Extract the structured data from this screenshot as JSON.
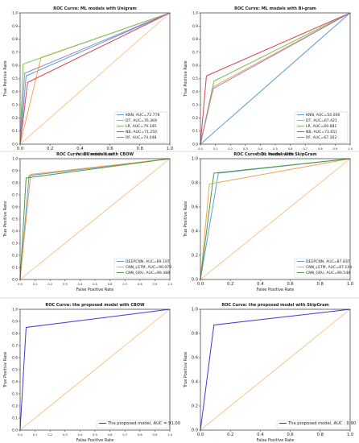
{
  "chart_data": [
    {
      "type": "line",
      "title": "ROC Curve: ML models with Unigram",
      "xlabel": "False Positive Rate",
      "ylabel": "True Positive Rate",
      "xlim": [
        0,
        1
      ],
      "ylim": [
        0,
        1
      ],
      "xticks": [
        "0.0",
        "0.2",
        "0.4",
        "0.6",
        "0.8",
        "1.0"
      ],
      "yticks": [
        "0.0",
        "0.1",
        "0.2",
        "0.3",
        "0.4",
        "0.5",
        "0.6",
        "0.7",
        "0.8",
        "0.9",
        "1.0"
      ],
      "legend_position": "lower-right",
      "diagonal_color": "#fdb56b",
      "series": [
        {
          "name": "KNN, AUC=72.778",
          "color": "#5aa0d6",
          "x": [
            0,
            0.04,
            1
          ],
          "y": [
            0,
            0.52,
            1
          ]
        },
        {
          "name": "DT, AUC=76.369",
          "color": "#f4a24c",
          "x": [
            0,
            0.14,
            1
          ],
          "y": [
            0,
            0.66,
            1
          ]
        },
        {
          "name": "LR, AUC=79.345",
          "color": "#7cbf55",
          "x": [
            0,
            0.02,
            1
          ],
          "y": [
            0,
            0.61,
            1
          ]
        },
        {
          "name": "NB, AUC=71.250",
          "color": "#d9454f",
          "x": [
            0,
            0.05,
            1
          ],
          "y": [
            0,
            0.47,
            1
          ]
        },
        {
          "name": "RF, AUC=74.048",
          "color": "#9a86c8",
          "x": [
            0,
            0.03,
            1
          ],
          "y": [
            0,
            0.54,
            1
          ]
        }
      ]
    },
    {
      "type": "line",
      "title": "ROC Curve: ML models with Bi-gram",
      "xlabel": "False Positive Rate",
      "ylabel": "True Positive Rate",
      "xlim": [
        0,
        1
      ],
      "ylim": [
        0,
        1
      ],
      "xticks": [
        "0.0",
        "0.1",
        "0.2",
        "0.3",
        "0.4",
        "0.5",
        "0.6",
        "0.7",
        "0.8",
        "0.9",
        "1.0"
      ],
      "yticks": [
        "0.0",
        "0.1",
        "0.2",
        "0.3",
        "0.4",
        "0.5",
        "0.6",
        "0.7",
        "0.8",
        "0.9",
        "1.0"
      ],
      "legend_position": "lower-right",
      "diagonal_color": "#fdb56b",
      "series": [
        {
          "name": "KNN, AUC=50.000",
          "color": "#5aa0d6",
          "x": [
            0,
            1
          ],
          "y": [
            0,
            1
          ]
        },
        {
          "name": "DT, AUC=67.421",
          "color": "#f4a24c",
          "x": [
            0,
            0.09,
            1
          ],
          "y": [
            0,
            0.44,
            1
          ]
        },
        {
          "name": "LR, AUC=69.881",
          "color": "#7cbf55",
          "x": [
            0,
            0.09,
            1
          ],
          "y": [
            0,
            0.48,
            1
          ]
        },
        {
          "name": "NB, AUC=73.651",
          "color": "#d9454f",
          "x": [
            0,
            0.04,
            1
          ],
          "y": [
            0,
            0.52,
            1
          ]
        },
        {
          "name": "RF, AUC=67.302",
          "color": "#9a86c8",
          "x": [
            0,
            0.08,
            1
          ],
          "y": [
            0,
            0.42,
            1
          ]
        }
      ]
    },
    {
      "type": "line",
      "title": "ROC Curve: DL models with CBOW",
      "xlabel": "False Positive Rate",
      "ylabel": "True Positive Rate",
      "xlim": [
        0,
        1
      ],
      "ylim": [
        0,
        1
      ],
      "xticks": [
        "0.0",
        "0.1",
        "0.2",
        "0.3",
        "0.4",
        "0.5",
        "0.6",
        "0.7",
        "0.8",
        "0.9",
        "1.0"
      ],
      "yticks": [
        "0.0",
        "0.1",
        "0.2",
        "0.3",
        "0.4",
        "0.5",
        "0.6",
        "0.7",
        "0.8",
        "0.9",
        "1.0"
      ],
      "legend_position": "lower-right",
      "diagonal_color": "#fdb56b",
      "series": [
        {
          "name": "DEEPCNN, AUC=89.107",
          "color": "#5aa0d6",
          "x": [
            0,
            0.06,
            1
          ],
          "y": [
            0,
            0.86,
            1
          ]
        },
        {
          "name": "CNN_LSTM, AUC=90.079",
          "color": "#f4a24c",
          "x": [
            0,
            0.07,
            1
          ],
          "y": [
            0,
            0.87,
            1
          ]
        },
        {
          "name": "CNN_GRU, AUC=89.484",
          "color": "#4e9a3f",
          "x": [
            0,
            0.04,
            1
          ],
          "y": [
            0,
            0.84,
            1
          ]
        }
      ]
    },
    {
      "type": "line",
      "title": "ROC Curve: DL model with SkipGram",
      "xlabel": "False Positive Rate",
      "ylabel": "True Positive Rate",
      "xlim": [
        0,
        1
      ],
      "ylim": [
        0,
        1
      ],
      "xticks": [
        "0.0",
        "0.2",
        "0.4",
        "0.6",
        "0.8",
        "1.0"
      ],
      "yticks": [
        "0.0",
        "0.2",
        "0.4",
        "0.6",
        "0.8",
        "1.0"
      ],
      "legend_position": "lower-right",
      "diagonal_color": "#fdb56b",
      "series": [
        {
          "name": "DEEPCNN, AUC=87.837",
          "color": "#5aa0d6",
          "x": [
            0,
            0.12,
            1
          ],
          "y": [
            0,
            0.88,
            1
          ]
        },
        {
          "name": "CNN_LSTM, AUC=87.143",
          "color": "#f4a24c",
          "x": [
            0,
            0.06,
            1
          ],
          "y": [
            0,
            0.79,
            1
          ]
        },
        {
          "name": "CNN_GRU, AUC=89.544",
          "color": "#4e9a3f",
          "x": [
            0,
            0.09,
            1
          ],
          "y": [
            0,
            0.88,
            1
          ]
        }
      ]
    },
    {
      "type": "line",
      "title": "ROC Curve: the proposed model with CBOW",
      "xlabel": "False Positive Rate",
      "ylabel": "True Positive Rate",
      "xlim": [
        0,
        1
      ],
      "ylim": [
        0,
        1
      ],
      "xticks": [
        "0.0",
        "0.1",
        "0.2",
        "0.3",
        "0.4",
        "0.5",
        "0.6",
        "0.7",
        "0.8",
        "0.9",
        "1.0"
      ],
      "yticks": [
        "0.0",
        "0.1",
        "0.2",
        "0.3",
        "0.4",
        "0.5",
        "0.6",
        "0.7",
        "0.8",
        "0.9",
        "1.0"
      ],
      "legend_position": "lower-right",
      "diagonal_color": "#fdb56b",
      "series": [
        {
          "name": "The proposed model, AUC = 91.00",
          "color": "#3b3bd9",
          "x": [
            0,
            0.04,
            1
          ],
          "y": [
            0,
            0.85,
            1
          ]
        }
      ]
    },
    {
      "type": "line",
      "title": "ROC Curve: the proposed model with SkipGram",
      "xlabel": "False Positive Rate",
      "ylabel": "True Positive Rate",
      "xlim": [
        0,
        1
      ],
      "ylim": [
        0,
        1
      ],
      "xticks": [
        "0.0",
        "0.2",
        "0.4",
        "0.6",
        "0.8",
        "1.0"
      ],
      "yticks": [
        "0.0",
        "0.2",
        "0.4",
        "0.6",
        "0.8",
        "1.0"
      ],
      "legend_position": "lower-right",
      "diagonal_color": "#fdb56b",
      "series": [
        {
          "name": "The proposed model, AUC  : 0.90",
          "color": "#3b3bd9",
          "x": [
            0,
            0.09,
            1
          ],
          "y": [
            0,
            0.87,
            1
          ]
        }
      ]
    }
  ]
}
